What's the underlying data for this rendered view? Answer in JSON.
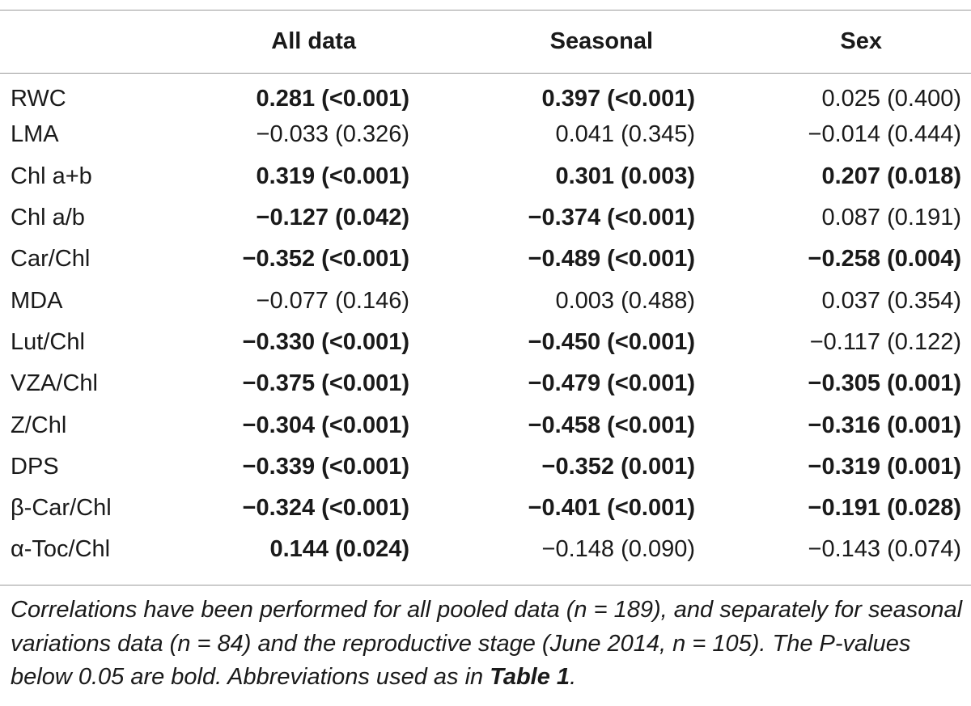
{
  "headers": {
    "blank": "",
    "all_data": "All data",
    "seasonal": "Seasonal",
    "sex": "Sex"
  },
  "rows": [
    {
      "label": "RWC",
      "all": "0.281 (<0.001)",
      "all_bold": true,
      "seasonal": "0.397 (<0.001)",
      "seasonal_bold": true,
      "sex": "0.025 (0.400)",
      "sex_bold": false
    },
    {
      "label": "LMA",
      "all": "−0.033 (0.326)",
      "all_bold": false,
      "seasonal": "0.041 (0.345)",
      "seasonal_bold": false,
      "sex": "−0.014 (0.444)",
      "sex_bold": false
    },
    {
      "label": "Chl a+b",
      "all": "0.319 (<0.001)",
      "all_bold": true,
      "seasonal": "0.301 (0.003)",
      "seasonal_bold": true,
      "sex": "0.207 (0.018)",
      "sex_bold": true
    },
    {
      "label": "Chl a/b",
      "all": "−0.127 (0.042)",
      "all_bold": true,
      "seasonal": "−0.374 (<0.001)",
      "seasonal_bold": true,
      "sex": "0.087 (0.191)",
      "sex_bold": false
    },
    {
      "label": "Car/Chl",
      "all": "−0.352 (<0.001)",
      "all_bold": true,
      "seasonal": "−0.489 (<0.001)",
      "seasonal_bold": true,
      "sex": "−0.258 (0.004)",
      "sex_bold": true
    },
    {
      "label": "MDA",
      "all": "−0.077 (0.146)",
      "all_bold": false,
      "seasonal": "0.003 (0.488)",
      "seasonal_bold": false,
      "sex": "0.037 (0.354)",
      "sex_bold": false
    },
    {
      "label": "Lut/Chl",
      "all": "−0.330 (<0.001)",
      "all_bold": true,
      "seasonal": "−0.450 (<0.001)",
      "seasonal_bold": true,
      "sex": "−0.117 (0.122)",
      "sex_bold": false
    },
    {
      "label": "VZA/Chl",
      "all": "−0.375 (<0.001)",
      "all_bold": true,
      "seasonal": "−0.479 (<0.001)",
      "seasonal_bold": true,
      "sex": "−0.305 (0.001)",
      "sex_bold": true
    },
    {
      "label": "Z/Chl",
      "all": "−0.304 (<0.001)",
      "all_bold": true,
      "seasonal": "−0.458 (<0.001)",
      "seasonal_bold": true,
      "sex": "−0.316 (0.001)",
      "sex_bold": true
    },
    {
      "label": "DPS",
      "all": "−0.339 (<0.001)",
      "all_bold": true,
      "seasonal": "−0.352 (0.001)",
      "seasonal_bold": true,
      "sex": "−0.319 (0.001)",
      "sex_bold": true
    },
    {
      "label": "β-Car/Chl",
      "all": "−0.324 (<0.001)",
      "all_bold": true,
      "seasonal": "−0.401 (<0.001)",
      "seasonal_bold": true,
      "sex": "−0.191 (0.028)",
      "sex_bold": true
    },
    {
      "label": "α-Toc/Chl",
      "all": "0.144 (0.024)",
      "all_bold": true,
      "seasonal": "−0.148 (0.090)",
      "seasonal_bold": false,
      "sex": "−0.143 (0.074)",
      "sex_bold": false
    }
  ],
  "caption": {
    "text": "Correlations have been performed for all pooled data (n = 189), and separately for seasonal variations data (n = 84) and the reproductive stage (June 2014, n = 105). The P-values below 0.05 are bold. Abbreviations used as in ",
    "ref": "Table 1",
    "end": "."
  }
}
